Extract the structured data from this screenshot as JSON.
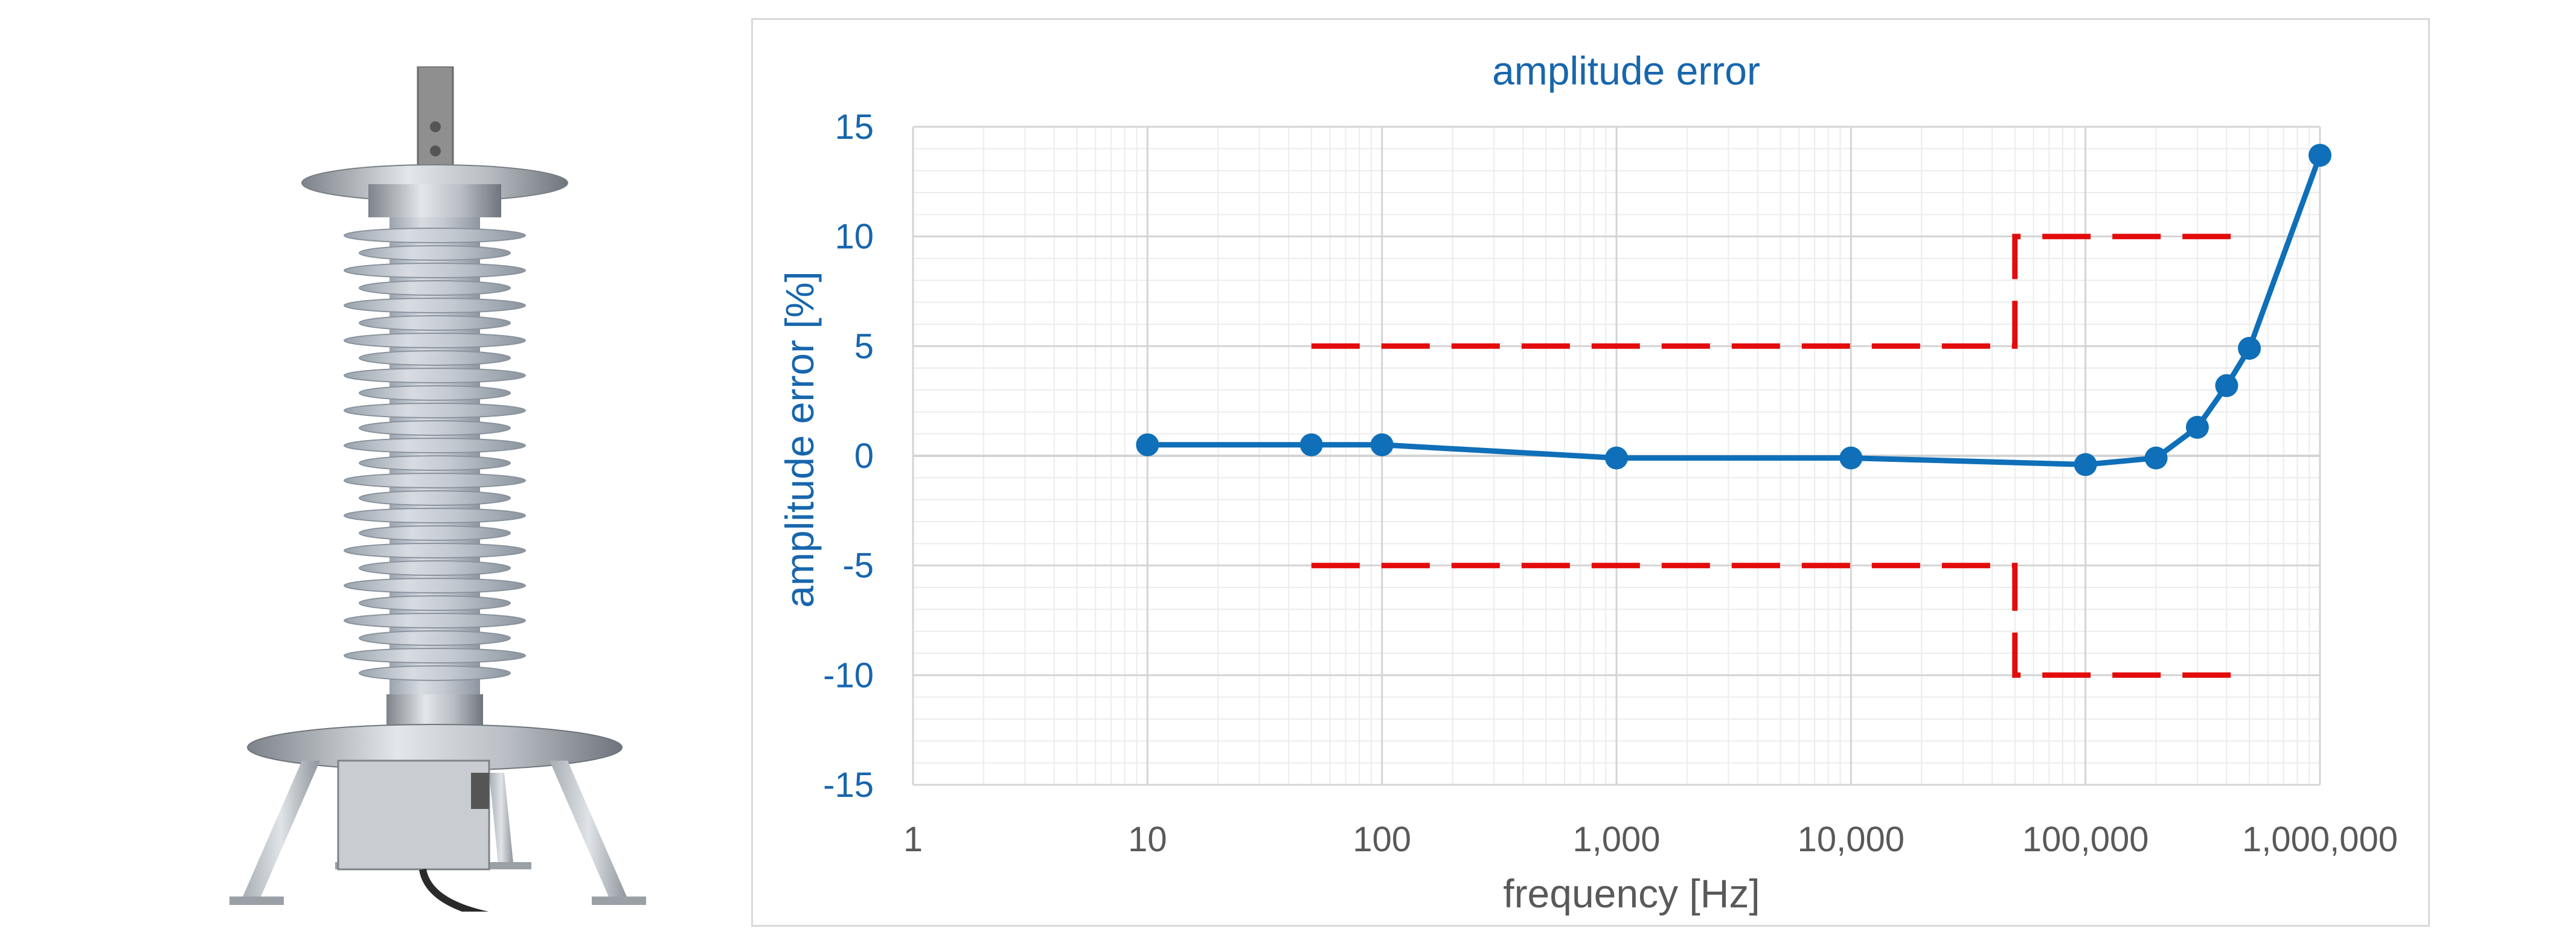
{
  "colors": {
    "series": "#0f6fb8",
    "limit": "#e30b0b",
    "y_axis_text": "#1766ad",
    "x_axis_text": "#595959",
    "title_text": "#1766ad",
    "major_grid": "#d4d4d4",
    "minor_grid": "#ececec",
    "frame": "#d9d9d9"
  },
  "photo": {
    "subject": "high-voltage voltage divider with grey silicone insulator sheds on a four-legged steel stand and an attached cable",
    "icon": "voltage-divider-photo"
  },
  "chart_data": {
    "type": "line",
    "title": "amplitude error",
    "xlabel": "frequency [Hz]",
    "ylabel": "amplitude error [%]",
    "x_scale": "log",
    "xlim": [
      1,
      1000000
    ],
    "ylim": [
      -15,
      15
    ],
    "x_ticks": [
      {
        "value": 1,
        "label": "1"
      },
      {
        "value": 10,
        "label": "10"
      },
      {
        "value": 100,
        "label": "100"
      },
      {
        "value": 1000,
        "label": "1,000"
      },
      {
        "value": 10000,
        "label": "10,000"
      },
      {
        "value": 100000,
        "label": "100,000"
      },
      {
        "value": 1000000,
        "label": "1,000,000"
      }
    ],
    "y_ticks": [
      {
        "value": 15,
        "label": "15"
      },
      {
        "value": 10,
        "label": "10"
      },
      {
        "value": 5,
        "label": "5"
      },
      {
        "value": 0,
        "label": "0"
      },
      {
        "value": -5,
        "label": "-5"
      },
      {
        "value": -10,
        "label": "-10"
      },
      {
        "value": -15,
        "label": "-15"
      }
    ],
    "grid": true,
    "legend": "none",
    "series": [
      {
        "style": "solid line with circle markers",
        "color": "#0f6fb8",
        "points": [
          {
            "x": 10,
            "y": 0.5
          },
          {
            "x": 50,
            "y": 0.5
          },
          {
            "x": 100,
            "y": 0.5
          },
          {
            "x": 1000,
            "y": -0.1
          },
          {
            "x": 10000,
            "y": -0.1
          },
          {
            "x": 100000,
            "y": -0.4
          },
          {
            "x": 200000,
            "y": -0.1
          },
          {
            "x": 300000,
            "y": 1.3
          },
          {
            "x": 400000,
            "y": 3.2
          },
          {
            "x": 500000,
            "y": 4.9
          },
          {
            "x": 1000000,
            "y": 13.7
          }
        ]
      },
      {
        "style": "dashed line",
        "color": "#e30b0b",
        "points": [
          {
            "x": 50,
            "y": 5
          },
          {
            "x": 50000,
            "y": 5
          },
          {
            "x": 50000,
            "y": 10
          },
          {
            "x": 500000,
            "y": 10
          }
        ]
      },
      {
        "style": "dashed line",
        "color": "#e30b0b",
        "points": [
          {
            "x": 50,
            "y": -5
          },
          {
            "x": 50000,
            "y": -5
          },
          {
            "x": 50000,
            "y": -10
          },
          {
            "x": 500000,
            "y": -10
          }
        ]
      }
    ]
  }
}
